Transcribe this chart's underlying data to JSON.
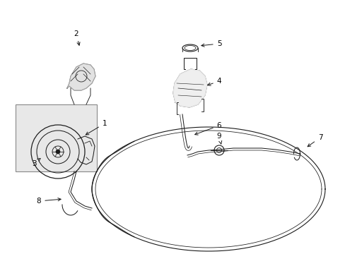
{
  "bg_color": "#ffffff",
  "line_color": "#1a1a1a",
  "label_color": "#000000",
  "box_color": "#e0e0e0",
  "figsize": [
    4.89,
    3.6
  ],
  "dpi": 100
}
